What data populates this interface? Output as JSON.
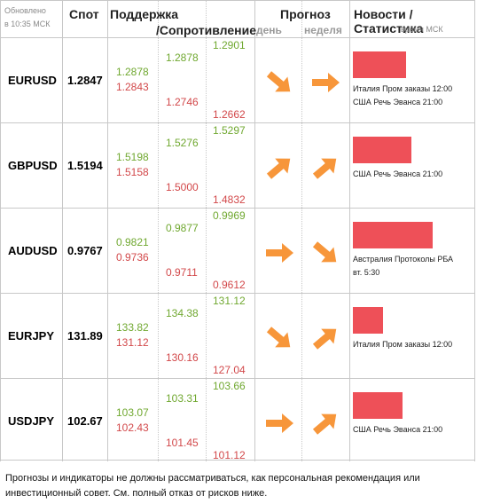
{
  "header": {
    "updated": "Обновлено",
    "updated_time": "в 10:35 МСК",
    "spot": "Спот",
    "support": "Поддержка",
    "resistance": "/Сопротивление",
    "forecast": "Прогноз",
    "day": "день",
    "week": "неделя",
    "news": "Новости / Статистика",
    "news_time": "время МСК"
  },
  "rows": [
    {
      "pair": "EURUSD",
      "spot": "1.2847",
      "s1_green": "1.2878",
      "s1_red": "1.2843",
      "s2_green": "1.2878",
      "s2_red": "1.2746",
      "s3_green": "1.2901",
      "s3_red": "1.2662",
      "day": "down-right-arrow-icon",
      "week": "right-arrow-icon",
      "bar_fill": 0.6,
      "news1": "Италия Пром заказы 12:00",
      "news2": "США Речь Эванса 21:00"
    },
    {
      "pair": "GBPUSD",
      "spot": "1.5194",
      "s1_green": "1.5198",
      "s1_red": "1.5158",
      "s2_green": "1.5276",
      "s2_red": "1.5000",
      "s3_green": "1.5297",
      "s3_red": "1.4832",
      "day": "up-right-arrow-icon",
      "week": "up-right-arrow-icon",
      "bar_fill": 0.66,
      "news1": "США Речь Эванса 21:00",
      "news2": ""
    },
    {
      "pair": "AUDUSD",
      "spot": "0.9767",
      "s1_green": "0.9821",
      "s1_red": "0.9736",
      "s2_green": "0.9877",
      "s2_red": "0.9711",
      "s3_green": "0.9969",
      "s3_red": "0.9612",
      "day": "right-arrow-icon",
      "week": "down-right-arrow-icon",
      "bar_fill": 0.9,
      "news1": "Австралия Протоколы РБА",
      "news2": "вт. 5:30"
    },
    {
      "pair": "EURJPY",
      "spot": "131.89",
      "s1_green": "133.82",
      "s1_red": "131.12",
      "s2_green": "134.38",
      "s2_red": "130.16",
      "s3_green": "131.12",
      "s3_red": "127.04",
      "day": "down-right-arrow-icon",
      "week": "up-right-arrow-icon",
      "bar_fill": 0.34,
      "news1": "Италия Пром заказы 12:00",
      "news2": ""
    },
    {
      "pair": "USDJPY",
      "spot": "102.67",
      "s1_green": "103.07",
      "s1_red": "102.43",
      "s2_green": "103.31",
      "s2_red": "101.45",
      "s3_green": "103.66",
      "s3_red": "101.12",
      "day": "right-arrow-icon",
      "week": "up-right-arrow-icon",
      "bar_fill": 0.56,
      "news1": "США Речь Эванса 21:00",
      "news2": ""
    }
  ],
  "colors": {
    "green": "#70a830",
    "red": "#d2484a",
    "bar": "#ee5058",
    "arrow": "#f7963a"
  },
  "disclaimer": "Прогнозы и индикаторы не должны рассматриваться, как персональная рекомендация или инвестиционный совет. См. полный отказ от рисков ниже."
}
